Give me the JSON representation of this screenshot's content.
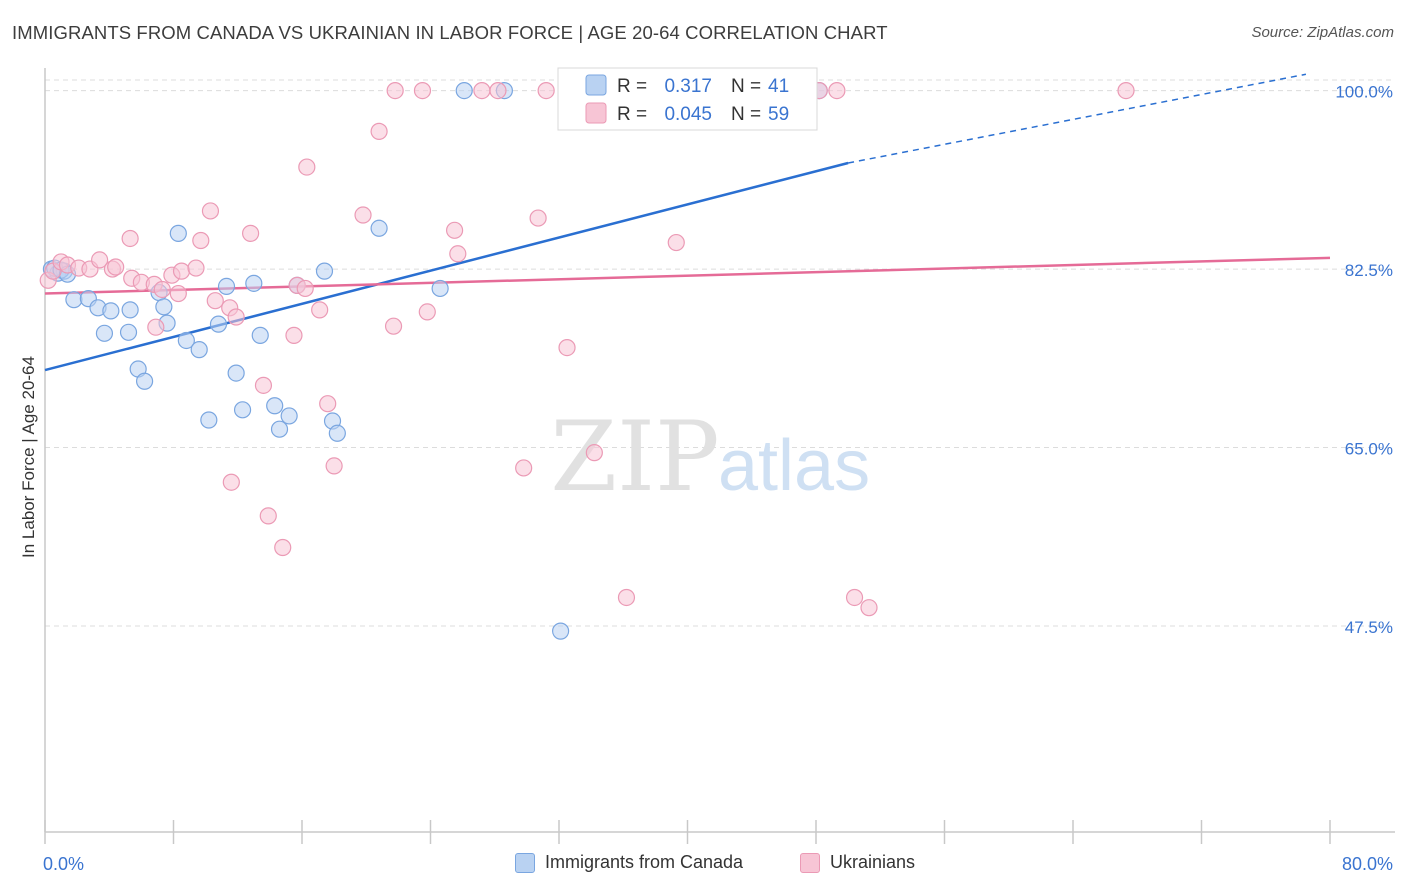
{
  "title": "IMMIGRANTS FROM CANADA VS UKRAINIAN IN LABOR FORCE | AGE 20-64 CORRELATION CHART",
  "source": "Source: ZipAtlas.com",
  "watermark": {
    "zip": "ZIP",
    "atlas": "atlas"
  },
  "legend_top": [
    {
      "r_label": "R =",
      "r_value": "0.317",
      "n_label": "N =",
      "n_value": "41"
    },
    {
      "r_label": "R =",
      "r_value": "0.045",
      "n_label": "N =",
      "n_value": "59"
    }
  ],
  "legend_bottom": [
    {
      "label": "Immigrants from Canada"
    },
    {
      "label": "Ukrainians"
    }
  ],
  "colors": {
    "blue_fill": "#b9d2f2",
    "blue_stroke": "#7aa6e0",
    "blue_line": "#2a6fd1",
    "pink_fill": "#f7c5d5",
    "pink_stroke": "#eb9ab5",
    "pink_line": "#e56b97",
    "tick_text": "#3a74d0",
    "grid": "#dcdcdc"
  },
  "chart_data": {
    "type": "scatter",
    "title": "IMMIGRANTS FROM CANADA VS UKRAINIAN IN LABOR FORCE | AGE 20-64 CORRELATION CHART",
    "xlabel": "",
    "ylabel": "In Labor Force | Age 20-64",
    "xlim": [
      0,
      80
    ],
    "ylim": [
      27.5,
      103
    ],
    "x_tick_labels": [
      "0.0%",
      "80.0%"
    ],
    "y_ticks": [
      100,
      82.5,
      65,
      47.5
    ],
    "y_tick_labels": [
      "100.0%",
      "82.5%",
      "65.0%",
      "47.5%"
    ],
    "grid": true,
    "legend_placement": "top-center",
    "series": [
      {
        "name": "Immigrants from Canada",
        "r": 0.317,
        "n": 41,
        "trend": {
          "x": [
            0,
            50
          ],
          "y": [
            72.6,
            92.9
          ],
          "dashed_to": {
            "x": 78.5,
            "y": 101.6
          }
        },
        "points": [
          [
            0.4,
            82.5
          ],
          [
            0.8,
            82.1
          ],
          [
            1.2,
            82.3
          ],
          [
            1.8,
            79.5
          ],
          [
            2.7,
            79.6
          ],
          [
            3.3,
            78.7
          ],
          [
            4.1,
            78.4
          ],
          [
            3.7,
            76.2
          ],
          [
            5.2,
            76.3
          ],
          [
            5.3,
            78.5
          ],
          [
            5.8,
            72.7
          ],
          [
            6.2,
            71.5
          ],
          [
            7.1,
            80.2
          ],
          [
            7.4,
            78.8
          ],
          [
            7.6,
            77.2
          ],
          [
            8.3,
            86.0
          ],
          [
            8.8,
            75.5
          ],
          [
            9.6,
            74.6
          ],
          [
            10.2,
            67.7
          ],
          [
            10.8,
            77.1
          ],
          [
            11.3,
            80.8
          ],
          [
            11.9,
            72.3
          ],
          [
            12.3,
            68.7
          ],
          [
            13.0,
            81.1
          ],
          [
            13.4,
            76.0
          ],
          [
            14.3,
            69.1
          ],
          [
            14.6,
            66.8
          ],
          [
            15.2,
            68.1
          ],
          [
            15.7,
            80.9
          ],
          [
            17.4,
            82.3
          ],
          [
            17.9,
            67.6
          ],
          [
            18.2,
            66.4
          ],
          [
            20.8,
            86.5
          ],
          [
            24.6,
            80.6
          ],
          [
            26.1,
            100.0
          ],
          [
            28.6,
            100.0
          ],
          [
            32.1,
            47.0
          ],
          [
            48.2,
            100.0
          ],
          [
            0.6,
            82.6
          ],
          [
            1.0,
            82.4
          ],
          [
            1.4,
            82.0
          ]
        ]
      },
      {
        "name": "Ukrainians",
        "r": 0.045,
        "n": 59,
        "trend": {
          "x": [
            0,
            80
          ],
          "y": [
            80.1,
            83.6
          ]
        },
        "points": [
          [
            0.2,
            81.4
          ],
          [
            0.5,
            82.3
          ],
          [
            1.0,
            83.2
          ],
          [
            1.4,
            82.9
          ],
          [
            2.1,
            82.6
          ],
          [
            2.8,
            82.5
          ],
          [
            3.4,
            83.4
          ],
          [
            4.2,
            82.5
          ],
          [
            4.4,
            82.7
          ],
          [
            5.3,
            85.5
          ],
          [
            5.4,
            81.6
          ],
          [
            6.0,
            81.2
          ],
          [
            6.8,
            81.0
          ],
          [
            6.9,
            76.8
          ],
          [
            7.3,
            80.5
          ],
          [
            7.9,
            81.9
          ],
          [
            8.5,
            82.3
          ],
          [
            8.3,
            80.1
          ],
          [
            9.4,
            82.6
          ],
          [
            9.7,
            85.3
          ],
          [
            10.3,
            88.2
          ],
          [
            10.6,
            79.4
          ],
          [
            11.5,
            78.7
          ],
          [
            11.6,
            61.6
          ],
          [
            11.9,
            77.8
          ],
          [
            12.8,
            86.0
          ],
          [
            13.6,
            71.1
          ],
          [
            13.9,
            58.3
          ],
          [
            14.8,
            55.2
          ],
          [
            15.5,
            76.0
          ],
          [
            15.7,
            80.9
          ],
          [
            16.2,
            80.6
          ],
          [
            16.3,
            92.5
          ],
          [
            17.1,
            78.5
          ],
          [
            17.6,
            69.3
          ],
          [
            18.0,
            63.2
          ],
          [
            19.8,
            87.8
          ],
          [
            20.8,
            96.0
          ],
          [
            21.7,
            76.9
          ],
          [
            21.8,
            100.0
          ],
          [
            23.5,
            100.0
          ],
          [
            23.8,
            78.3
          ],
          [
            25.5,
            86.3
          ],
          [
            25.7,
            84.0
          ],
          [
            27.2,
            100.0
          ],
          [
            28.2,
            100.0
          ],
          [
            29.8,
            63.0
          ],
          [
            30.7,
            87.5
          ],
          [
            31.2,
            100.0
          ],
          [
            32.5,
            74.8
          ],
          [
            34.2,
            64.5
          ],
          [
            36.2,
            50.3
          ],
          [
            38.0,
            100.0
          ],
          [
            39.3,
            85.1
          ],
          [
            48.2,
            100.0
          ],
          [
            49.3,
            100.0
          ],
          [
            50.4,
            50.3
          ],
          [
            51.3,
            49.3
          ],
          [
            67.3,
            100.0
          ]
        ]
      }
    ]
  }
}
